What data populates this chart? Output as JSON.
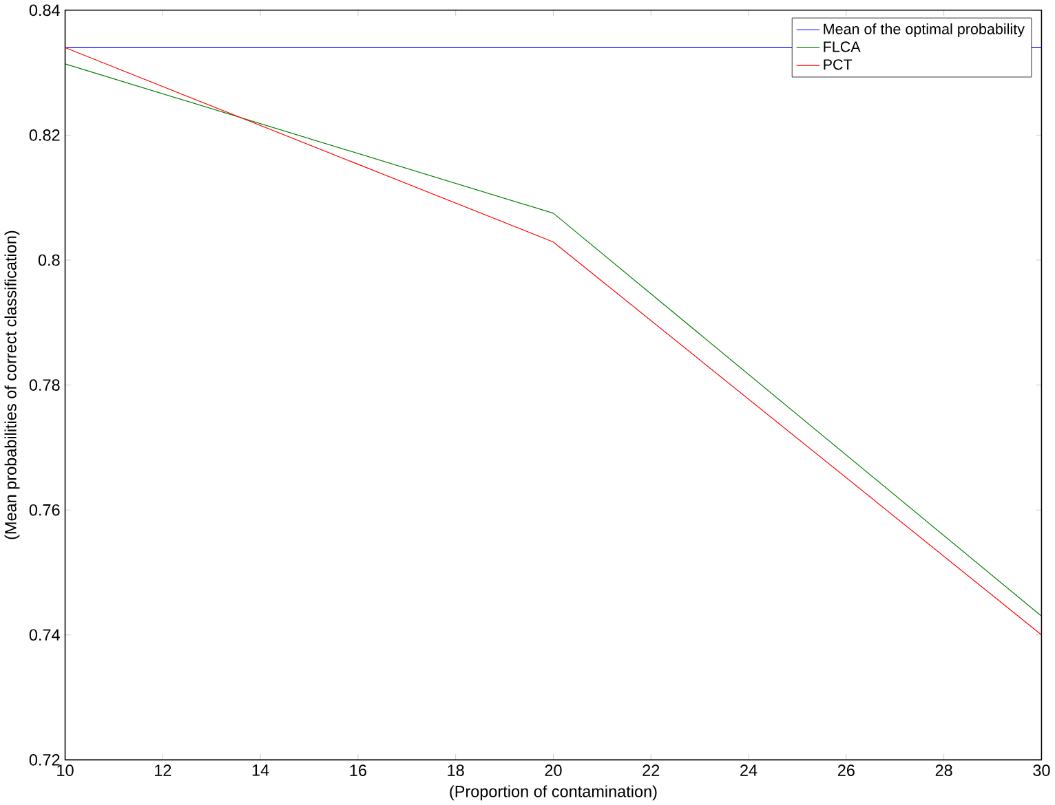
{
  "chart_data": {
    "type": "line",
    "xlabel": "(Proportion of contamination)",
    "ylabel": "(Mean probabilities of correct classification)",
    "x": [
      10,
      20,
      30
    ],
    "series": [
      {
        "name": "Mean of the optimal probability",
        "color": "#0000ff",
        "values": [
          0.834,
          0.834,
          0.834
        ]
      },
      {
        "name": "FLCA",
        "color": "#008000",
        "values": [
          0.8314,
          0.8075,
          0.743
        ]
      },
      {
        "name": "PCT",
        "color": "#ff0000",
        "values": [
          0.834,
          0.8029,
          0.74
        ]
      }
    ],
    "xlim": [
      10,
      30
    ],
    "xticks": [
      10,
      12,
      14,
      16,
      18,
      20,
      22,
      24,
      26,
      28,
      30
    ],
    "ylim": [
      0.72,
      0.84
    ],
    "yticks": [
      0.72,
      0.74,
      0.76,
      0.78,
      0.8,
      0.82,
      0.84
    ],
    "grid": false,
    "legend": "top right",
    "marker": "none",
    "line_style": "solid"
  }
}
